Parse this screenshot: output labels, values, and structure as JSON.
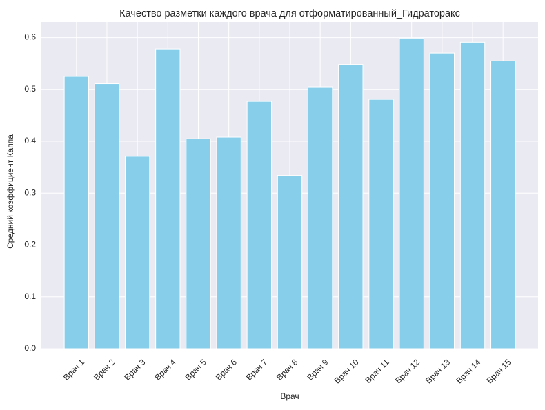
{
  "chart_data": {
    "type": "bar",
    "title": "Качество разметки каждого врача для отформатированный_Гидраторакс",
    "xlabel": "Врач",
    "ylabel": "Средний коэффициент Каппа",
    "categories": [
      "Врач 1",
      "Врач 2",
      "Врач 3",
      "Врач 4",
      "Врач 5",
      "Врач 6",
      "Врач 7",
      "Врач 8",
      "Врач 9",
      "Врач 10",
      "Врач 11",
      "Врач 12",
      "Врач 13",
      "Врач 14",
      "Врач 15"
    ],
    "values": [
      0.525,
      0.511,
      0.371,
      0.578,
      0.405,
      0.408,
      0.477,
      0.334,
      0.505,
      0.548,
      0.481,
      0.599,
      0.57,
      0.591,
      0.555
    ],
    "ylim": [
      0,
      0.63
    ],
    "yticks": [
      0.0,
      0.1,
      0.2,
      0.3,
      0.4,
      0.5,
      0.6
    ],
    "ytick_labels": [
      "0.0",
      "0.1",
      "0.2",
      "0.3",
      "0.4",
      "0.5",
      "0.6"
    ],
    "bar_color": "#87CEEB",
    "background_color": "#EAEAF2",
    "grid": true,
    "grid_color": "#FFFFFF"
  }
}
